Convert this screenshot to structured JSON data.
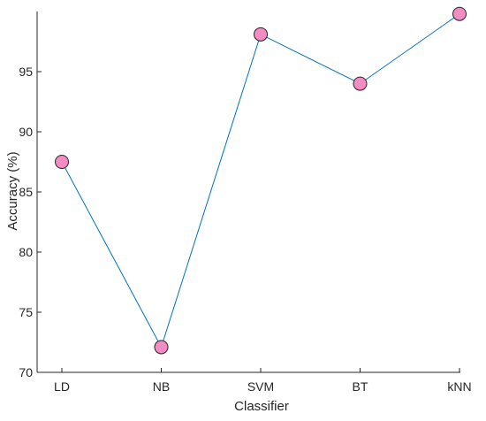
{
  "chart_data": {
    "type": "line",
    "title": "",
    "xlabel": "Classifier",
    "ylabel": "Accuracy (%)",
    "categories": [
      "LD",
      "NB",
      "SVM",
      "BT",
      "kNN"
    ],
    "series": [
      {
        "values": [
          87.5,
          72.1,
          98.1,
          94.0,
          99.8
        ]
      }
    ],
    "ylim": [
      70,
      100
    ],
    "yticks": [
      70,
      75,
      80,
      85,
      90,
      95
    ],
    "grid": false,
    "legend": "none",
    "colors": {
      "line": "#0072BD",
      "marker_fill": "#F48CC4",
      "marker_edge": "#262626",
      "axis": "#262626"
    }
  }
}
